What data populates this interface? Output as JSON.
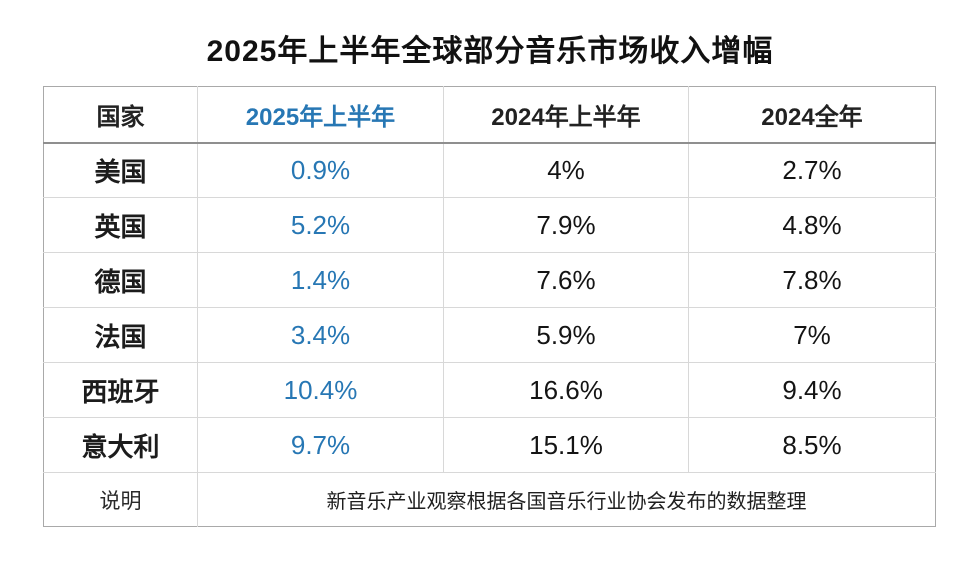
{
  "accent_color": "#2777b4",
  "chart_data": {
    "type": "table",
    "title": "2025年上半年全球部分音乐市场收入增幅",
    "columns": [
      "国家",
      "2025年上半年",
      "2024年上半年",
      "2024全年"
    ],
    "rows": [
      [
        "美国",
        "0.9%",
        "4%",
        "2.7%"
      ],
      [
        "英国",
        "5.2%",
        "7.9%",
        "4.8%"
      ],
      [
        "德国",
        "1.4%",
        "7.6%",
        "7.8%"
      ],
      [
        "法国",
        "3.4%",
        "5.9%",
        "7%"
      ],
      [
        "西班牙",
        "10.4%",
        "16.6%",
        "9.4%"
      ],
      [
        "意大利",
        "9.7%",
        "15.1%",
        "8.5%"
      ]
    ],
    "note_label": "说明",
    "note_text": "新音乐产业观察根据各国音乐行业协会发布的数据整理",
    "series": [
      {
        "name": "2025年上半年",
        "values": [
          0.9,
          5.2,
          1.4,
          3.4,
          10.4,
          9.7
        ]
      },
      {
        "name": "2024年上半年",
        "values": [
          4,
          7.9,
          7.6,
          5.9,
          16.6,
          15.1
        ]
      },
      {
        "name": "2024全年",
        "values": [
          2.7,
          4.8,
          7.8,
          7,
          9.4,
          8.5
        ]
      }
    ],
    "categories": [
      "美国",
      "英国",
      "德国",
      "法国",
      "西班牙",
      "意大利"
    ],
    "legend_position": "none",
    "grid": true
  }
}
